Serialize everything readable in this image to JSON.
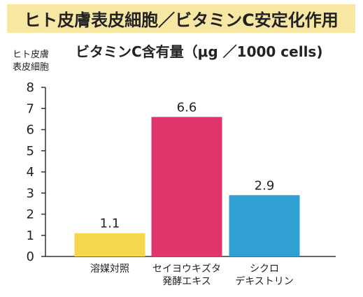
{
  "page_title": "ヒト皮膚表皮細胞／ビタミンC安定化作用",
  "chart_data": {
    "type": "bar",
    "title": "ビタミンC含有量（μg ／1000 cells)",
    "ylabel_lines": [
      "ヒト皮膚",
      "表皮細胞"
    ],
    "xlabel": "",
    "categories": [
      [
        "溶媒対照"
      ],
      [
        "セイヨウキズタ",
        "発酵エキス"
      ],
      [
        "シクロ",
        "デキストリン"
      ]
    ],
    "values": [
      1.1,
      6.6,
      2.9
    ],
    "value_labels": [
      "1.1",
      "6.6",
      "2.9"
    ],
    "bar_colors": [
      "#f5d64e",
      "#e0356b",
      "#2f9fd4"
    ],
    "ylim": [
      0,
      8
    ],
    "yticks": [
      0,
      1,
      2,
      3,
      4,
      5,
      6,
      7,
      8
    ],
    "grid": false,
    "legend": "none"
  }
}
